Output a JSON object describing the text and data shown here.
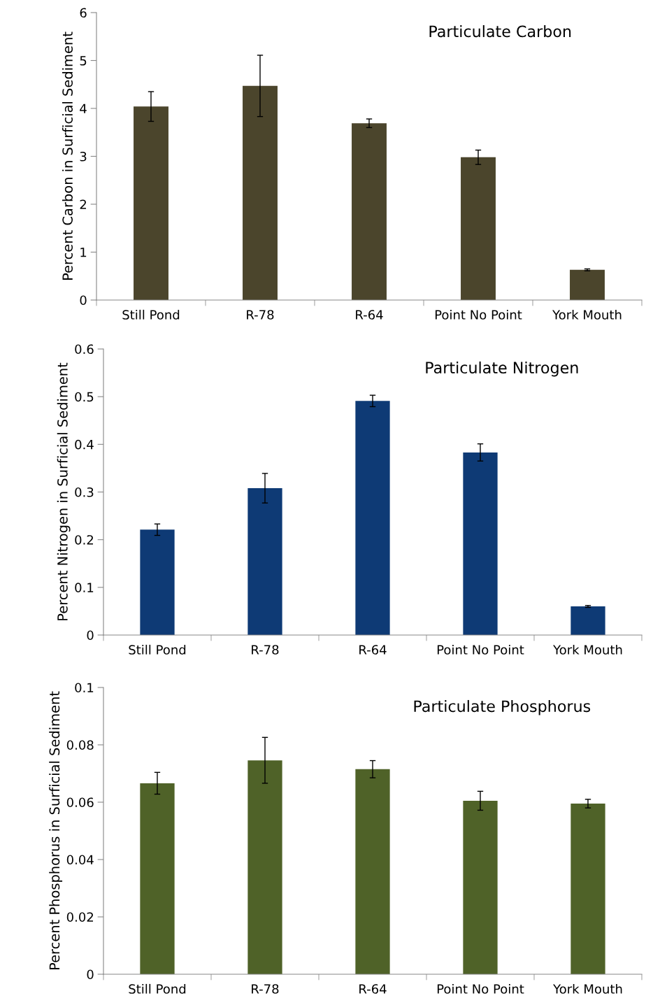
{
  "chart_data": [
    {
      "type": "bar",
      "title": "Particulate Carbon",
      "ylabel": "Percent Carbon in Surficial Sediment",
      "categories": [
        "Still Pond",
        "R-78",
        "R-64",
        "Point No Point",
        "York Mouth"
      ],
      "values": [
        4.04,
        4.47,
        3.69,
        2.98,
        0.63
      ],
      "color": "#4b452c",
      "errors": [
        0.31,
        0.64,
        0.09,
        0.15,
        0.02
      ],
      "ylim": [
        0,
        6
      ],
      "yticks": [
        0,
        1,
        2,
        3,
        4,
        5,
        6
      ],
      "grid": false,
      "legend": false
    },
    {
      "type": "bar",
      "title": "Particulate Nitrogen",
      "ylabel": "Percent Nitrogen in Surficial Sediment",
      "categories": [
        "Still Pond",
        "R-78",
        "R-64",
        "Point No Point",
        "York Mouth"
      ],
      "values": [
        0.221,
        0.308,
        0.491,
        0.383,
        0.06
      ],
      "color": "#0e3a75",
      "errors": [
        0.012,
        0.031,
        0.012,
        0.018,
        0.002
      ],
      "ylim": [
        0,
        0.6
      ],
      "yticks": [
        0,
        0.1,
        0.2,
        0.3,
        0.4,
        0.5,
        0.6
      ],
      "grid": false,
      "legend": false
    },
    {
      "type": "bar",
      "title": "Particulate Phosphorus",
      "ylabel": "Percent Phosphorus in Surficial Sediment",
      "categories": [
        "Still Pond",
        "R-78",
        "R-64",
        "Point No Point",
        "York Mouth"
      ],
      "values": [
        0.0666,
        0.0746,
        0.0715,
        0.0605,
        0.0595
      ],
      "color": "#4f6228",
      "errors": [
        0.0038,
        0.008,
        0.003,
        0.0033,
        0.0015
      ],
      "ylim": [
        0,
        0.1
      ],
      "yticks": [
        0,
        0.02,
        0.04,
        0.06,
        0.08,
        0.1
      ],
      "grid": false,
      "legend": false
    }
  ]
}
